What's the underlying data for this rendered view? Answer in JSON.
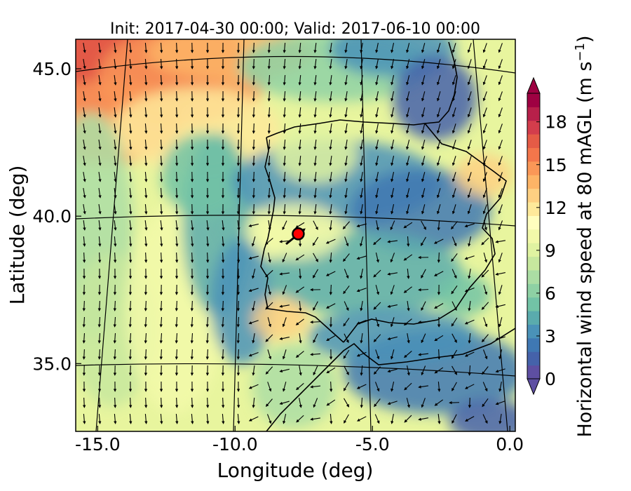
{
  "chart_data": {
    "type": "heatmap",
    "title": "Init: 2017-04-30 00:00; Valid: 2017-06-10 00:00",
    "xlabel": "Longitude (deg)",
    "ylabel": "Latitude (deg)",
    "xlim": [
      -15.8,
      0.2
    ],
    "ylim": [
      32.7,
      46.0
    ],
    "x_ticks": [
      -15.0,
      -10.0,
      -5.0,
      0.0
    ],
    "x_tick_labels": [
      "-15.0",
      "-10.0",
      "-5.0",
      "0.0"
    ],
    "y_ticks": [
      35.0,
      40.0,
      45.0
    ],
    "y_tick_labels": [
      "35.0",
      "40.0",
      "45.0"
    ],
    "overlay": "wind vectors at 80 mAGL",
    "marker": {
      "lon": -7.7,
      "lat": 39.4,
      "color": "#ff0000"
    },
    "colorbar": {
      "label_main": "Horizontal wind speed at 80 mAGL (m s",
      "label_exp": "−1",
      "label_close": ")",
      "min": 0,
      "max": 20,
      "extend": "both",
      "ticks": [
        0,
        3,
        6,
        9,
        12,
        15,
        18
      ],
      "tick_labels": [
        "0",
        "3",
        "6",
        "9",
        "12",
        "15",
        "18"
      ],
      "colors": [
        "#5e4fa2",
        "#4562aa",
        "#3f78b3",
        "#4a92b8",
        "#5aabad",
        "#72c3a6",
        "#8ed1a4",
        "#abdda4",
        "#c7e89e",
        "#e0f3a1",
        "#f2f9a9",
        "#fffebe",
        "#fee99a",
        "#fed082",
        "#fdb466",
        "#fa9757",
        "#f3764b",
        "#e55b46",
        "#d33d4c",
        "#b7204a",
        "#9e0142"
      ],
      "under_color": "#5e4fa2",
      "over_color": "#9e0142"
    }
  }
}
